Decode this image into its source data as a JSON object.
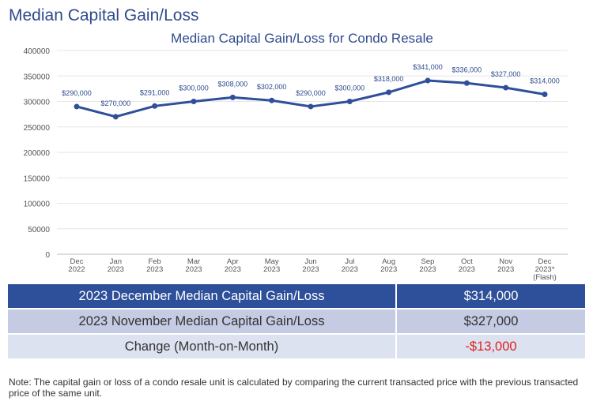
{
  "page": {
    "heading": "Median Capital Gain/Loss"
  },
  "chart_data": {
    "type": "line",
    "title": "Median Capital Gain/Loss for Condo Resale",
    "categories": [
      [
        "Dec",
        "2022"
      ],
      [
        "Jan",
        "2023"
      ],
      [
        "Feb",
        "2023"
      ],
      [
        "Mar",
        "2023"
      ],
      [
        "Apr",
        "2023"
      ],
      [
        "May",
        "2023"
      ],
      [
        "Jun",
        "2023"
      ],
      [
        "Jul",
        "2023"
      ],
      [
        "Aug",
        "2023"
      ],
      [
        "Sep",
        "2023"
      ],
      [
        "Oct",
        "2023"
      ],
      [
        "Nov",
        "2023"
      ],
      [
        "Dec",
        "2023*",
        "(Flash)"
      ]
    ],
    "values": [
      290000,
      270000,
      291000,
      300000,
      308000,
      302000,
      290000,
      300000,
      318000,
      341000,
      336000,
      327000,
      314000
    ],
    "data_labels": [
      "$290,000",
      "$270,000",
      "$291,000",
      "$300,000",
      "$308,000",
      "$302,000",
      "$290,000",
      "$300,000",
      "$318,000",
      "$341,000",
      "$336,000",
      "$327,000",
      "$314,000"
    ],
    "ylim": [
      0,
      400000
    ],
    "yticks": [
      0,
      50000,
      100000,
      150000,
      200000,
      250000,
      300000,
      350000,
      400000
    ],
    "xlabel": "",
    "ylabel": "",
    "grid": true,
    "legend": "none",
    "line_color": "#2e4f99"
  },
  "summary": {
    "rows": [
      {
        "label": "2023 December Median Capital Gain/Loss",
        "value": "$314,000"
      },
      {
        "label": "2023 November Median Capital Gain/Loss",
        "value": "$327,000"
      },
      {
        "label": "Change (Month-on-Month)",
        "value": "-$13,000"
      }
    ]
  },
  "note": "Note: The capital gain or loss of a condo resale unit is calculated by comparing the current transacted price with the previous transacted price of the same unit."
}
